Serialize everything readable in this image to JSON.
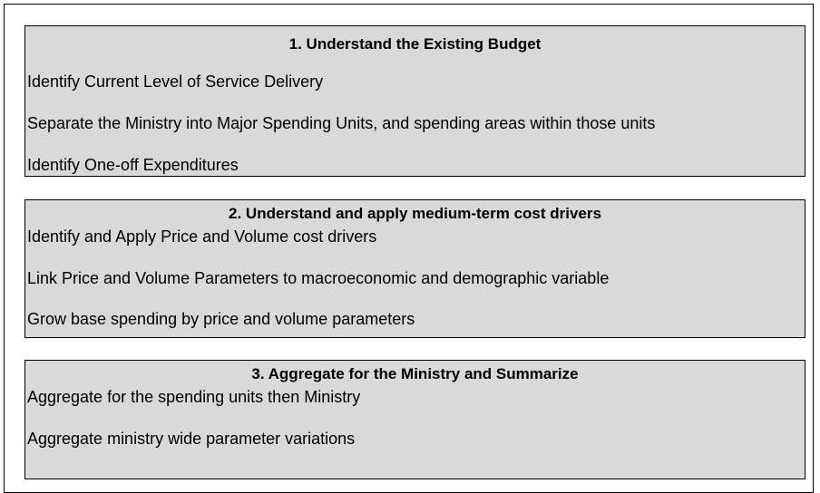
{
  "sections": [
    {
      "title": "1. Understand the Existing Budget",
      "items": [
        "Identify Current Level of Service Delivery",
        "Separate the Ministry into Major Spending Units, and spending areas within those units",
        "Identify One-off Expenditures"
      ]
    },
    {
      "title": "2. Understand and apply medium-term cost drivers",
      "items": [
        "Identify and Apply Price and Volume cost drivers",
        "Link Price and Volume Parameters to macroeconomic and demographic variable",
        "Grow base spending by price and volume parameters"
      ]
    },
    {
      "title": "3. Aggregate for the Ministry and Summarize",
      "items": [
        "Aggregate for the spending units then Ministry",
        "Aggregate ministry wide parameter variations"
      ]
    }
  ]
}
